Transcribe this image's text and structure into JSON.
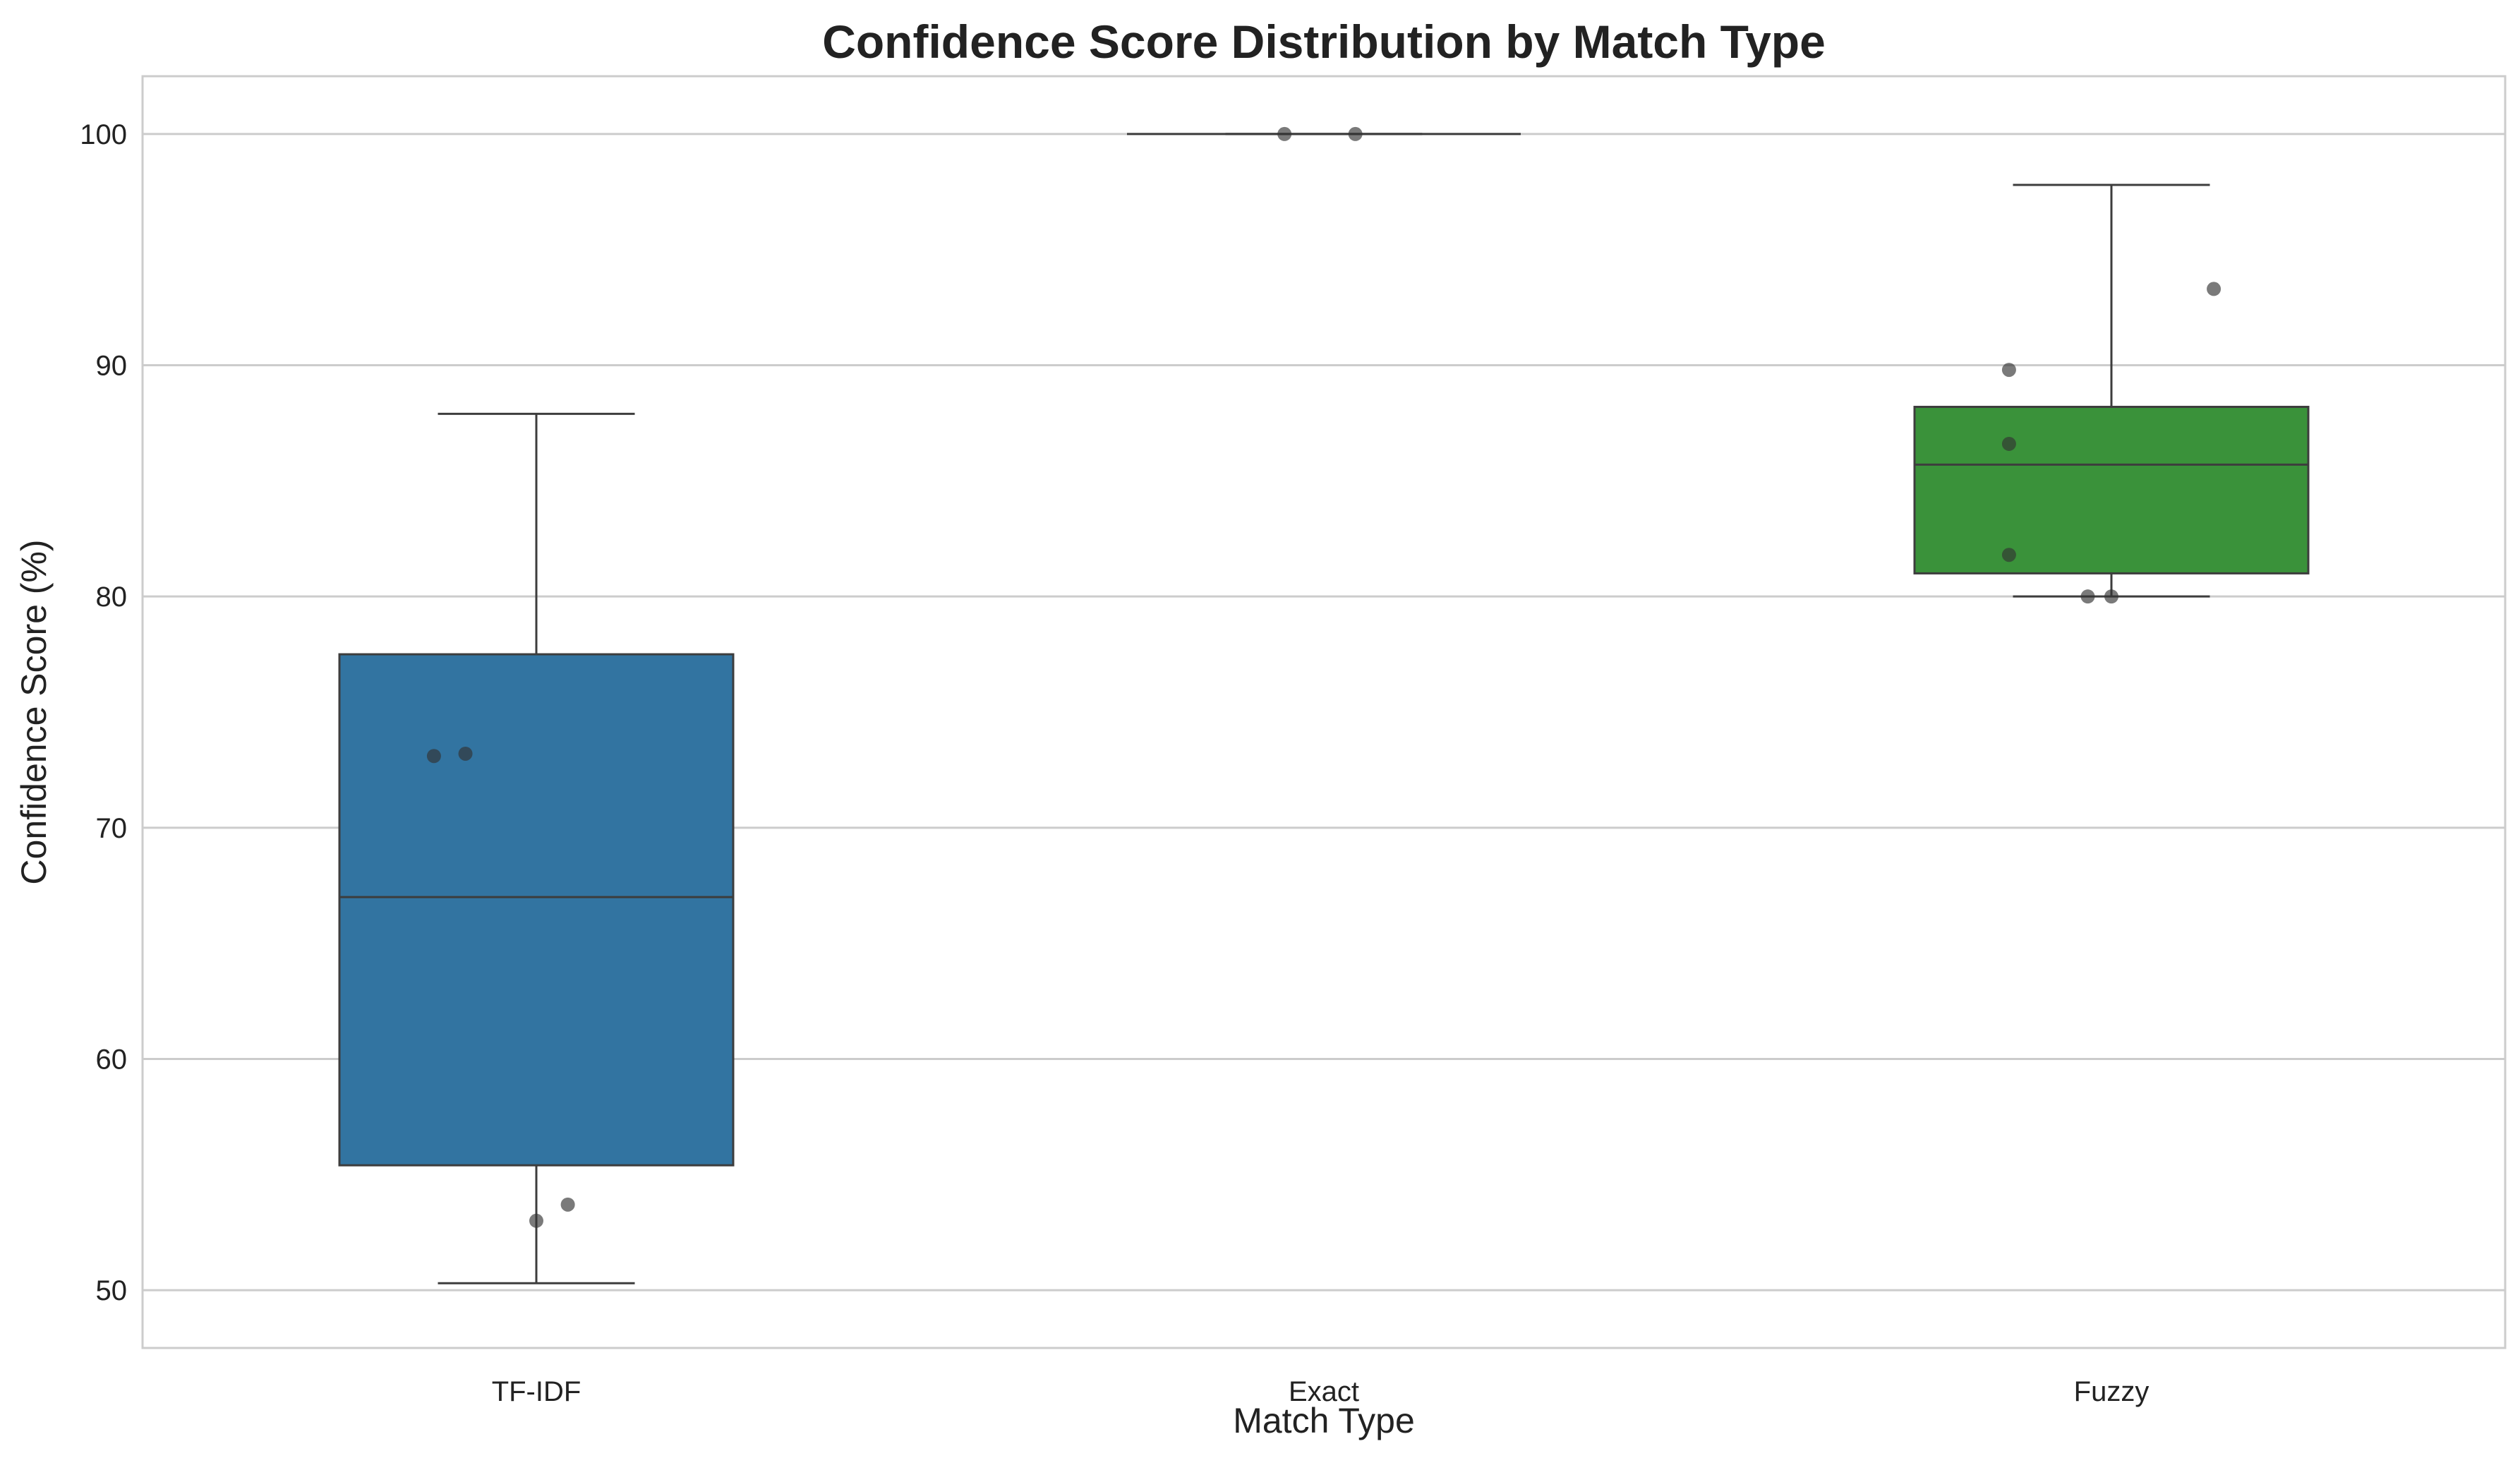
{
  "chart_data": {
    "type": "box",
    "title": "Confidence Score Distribution by Match Type",
    "xlabel": "Match Type",
    "ylabel": "Confidence Score (%)",
    "ylim": [
      47.5,
      102.5
    ],
    "yticks": [
      50,
      60,
      70,
      80,
      90,
      100
    ],
    "grid": "horizontal",
    "categories": [
      "TF-IDF",
      "Exact",
      "Fuzzy"
    ],
    "boxes": [
      {
        "category": "TF-IDF",
        "color": "#3274a1",
        "whisker_low": 50.3,
        "q1": 55.4,
        "median": 67.0,
        "q3": 77.5,
        "whisker_high": 87.9,
        "points": [
          {
            "x_jitter": -0.13,
            "y": 73.1
          },
          {
            "x_jitter": -0.09,
            "y": 73.2
          },
          {
            "x_jitter": 0.0,
            "y": 53.0
          },
          {
            "x_jitter": 0.04,
            "y": 53.7
          }
        ]
      },
      {
        "category": "Exact",
        "color": "#3274a1",
        "whisker_low": 100.0,
        "q1": 100.0,
        "median": 100.0,
        "q3": 100.0,
        "whisker_high": 100.0,
        "points": [
          {
            "x_jitter": -0.05,
            "y": 100.0
          },
          {
            "x_jitter": 0.04,
            "y": 100.0
          }
        ]
      },
      {
        "category": "Fuzzy",
        "color": "#3a923a",
        "whisker_low": 80.0,
        "q1": 81.0,
        "median": 85.7,
        "q3": 88.2,
        "whisker_high": 97.8,
        "points": [
          {
            "x_jitter": -0.13,
            "y": 89.8
          },
          {
            "x_jitter": -0.13,
            "y": 86.6
          },
          {
            "x_jitter": -0.13,
            "y": 81.8
          },
          {
            "x_jitter": -0.03,
            "y": 80.0
          },
          {
            "x_jitter": 0.0,
            "y": 80.0
          },
          {
            "x_jitter": 0.13,
            "y": 93.3
          }
        ]
      }
    ],
    "colors": {
      "grid": "#cccccc",
      "frame": "#cccccc",
      "box_line": "#3d3d3d",
      "point": "#333333"
    }
  }
}
